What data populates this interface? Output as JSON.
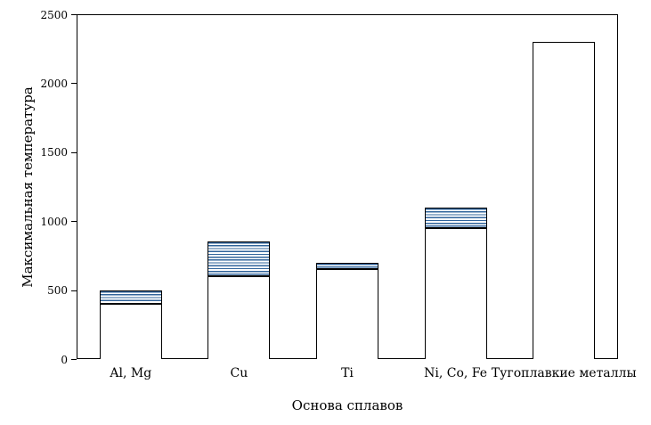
{
  "chart_data": {
    "type": "bar",
    "stacked": true,
    "xlabel": "Основа сплавов",
    "ylabel": "Максимальная температура",
    "ylim": [
      0,
      2500
    ],
    "yticks": [
      0,
      500,
      1000,
      1500,
      2000,
      2500
    ],
    "grid": false,
    "legend": false,
    "categories": [
      "Al, Mg",
      "Cu",
      "Ti",
      "Ni, Co, Fe",
      "Тугоплавкие металлы"
    ],
    "series": [
      {
        "name": "base-solid",
        "style": "white-fill",
        "values": [
          400,
          600,
          650,
          950,
          2300
        ]
      },
      {
        "name": "upper-range-hatched",
        "style": "blue-horizontal-hatch",
        "values": [
          100,
          250,
          50,
          150,
          0
        ]
      }
    ],
    "stack_totals": [
      500,
      850,
      700,
      1100,
      2300
    ],
    "colors": {
      "bar_outline": "#000000",
      "hatch_line": "#31649B",
      "axis": "#000000",
      "background": "#FFFFFF"
    }
  }
}
